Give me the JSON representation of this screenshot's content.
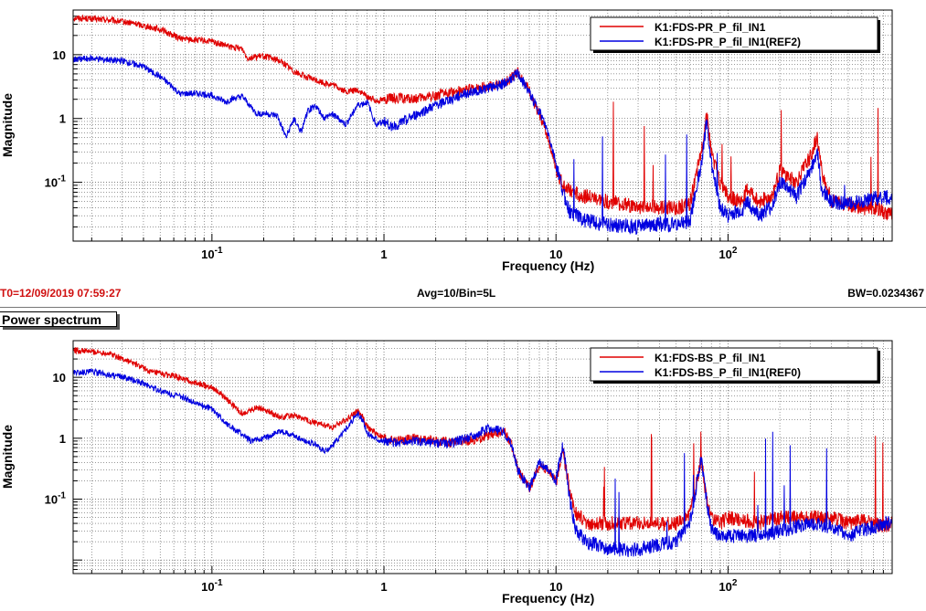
{
  "header": {
    "t0": "T0=12/09/2019 07:59:27",
    "avg": "Avg=10/Bin=5L",
    "bw": "BW=0.0234367",
    "tab_label": "Power spectrum"
  },
  "colors": {
    "trace": "#e00000",
    "reference": "#0000e0"
  },
  "chart_data": [
    {
      "type": "line",
      "xlabel": "Frequency (Hz)",
      "ylabel": "Magnitude",
      "xscale": "log",
      "yscale": "log",
      "xlim": [
        0.0156,
        900
      ],
      "ylim": [
        0.012,
        50
      ],
      "grid": true,
      "legend_position": "top-right",
      "x_ticks": [
        {
          "v": 0.1,
          "b": "10",
          "e": "-1"
        },
        {
          "v": 1,
          "b": "1",
          "e": ""
        },
        {
          "v": 10,
          "b": "10",
          "e": ""
        },
        {
          "v": 100,
          "b": "10",
          "e": "2"
        }
      ],
      "y_ticks": [
        {
          "v": 0.1,
          "b": "10",
          "e": "-1"
        },
        {
          "v": 1,
          "b": "1",
          "e": ""
        },
        {
          "v": 10,
          "b": "10",
          "e": ""
        }
      ],
      "series": [
        {
          "name": "K1:FDS-PR_P_fil_IN1",
          "color": "#e00000",
          "points": [
            [
              0.0156,
              38
            ],
            [
              0.025,
              35
            ],
            [
              0.035,
              31
            ],
            [
              0.05,
              25
            ],
            [
              0.065,
              18
            ],
            [
              0.08,
              17
            ],
            [
              0.1,
              16
            ],
            [
              0.13,
              13
            ],
            [
              0.15,
              12.5
            ],
            [
              0.16,
              9
            ],
            [
              0.2,
              9.5
            ],
            [
              0.25,
              8
            ],
            [
              0.3,
              5.5
            ],
            [
              0.35,
              4.5
            ],
            [
              0.4,
              4
            ],
            [
              0.45,
              3.6
            ],
            [
              0.5,
              3.4
            ],
            [
              0.55,
              3
            ],
            [
              0.6,
              2.6
            ],
            [
              0.7,
              2.8
            ],
            [
              0.8,
              2.2
            ],
            [
              0.9,
              1.9
            ],
            [
              1.0,
              2.0
            ],
            [
              1.2,
              2.1
            ],
            [
              1.5,
              2.0
            ],
            [
              2,
              2.3
            ],
            [
              2.5,
              2.6
            ],
            [
              3,
              2.8
            ],
            [
              3.5,
              3.0
            ],
            [
              4,
              3.2
            ],
            [
              5,
              3.5
            ],
            [
              6,
              5.5
            ],
            [
              6.5,
              3.8
            ],
            [
              7,
              2.8
            ],
            [
              7.5,
              1.6
            ],
            [
              8,
              1.2
            ],
            [
              9,
              0.5
            ],
            [
              10,
              0.16
            ],
            [
              11,
              0.09
            ],
            [
              12,
              0.07
            ],
            [
              15,
              0.06
            ],
            [
              20,
              0.05
            ],
            [
              30,
              0.042
            ],
            [
              40,
              0.04
            ],
            [
              50,
              0.04
            ],
            [
              60,
              0.045
            ],
            [
              70,
              0.3
            ],
            [
              75,
              1.2
            ],
            [
              80,
              0.3
            ],
            [
              90,
              0.1
            ],
            [
              100,
              0.06
            ],
            [
              120,
              0.05
            ],
            [
              130,
              0.08
            ],
            [
              150,
              0.05
            ],
            [
              180,
              0.06
            ],
            [
              200,
              0.15
            ],
            [
              250,
              0.1
            ],
            [
              300,
              0.25
            ],
            [
              330,
              0.5
            ],
            [
              350,
              0.15
            ],
            [
              400,
              0.05
            ],
            [
              500,
              0.045
            ],
            [
              600,
              0.04
            ],
            [
              700,
              0.04
            ],
            [
              800,
              0.035
            ],
            [
              900,
              0.03
            ]
          ]
        },
        {
          "name": "K1:FDS-PR_P_fil_IN1(REF2)",
          "color": "#0000e0",
          "points": [
            [
              0.0156,
              8.5
            ],
            [
              0.02,
              8.7
            ],
            [
              0.03,
              8
            ],
            [
              0.04,
              6.5
            ],
            [
              0.05,
              4.5
            ],
            [
              0.06,
              3.0
            ],
            [
              0.065,
              2.4
            ],
            [
              0.08,
              2.5
            ],
            [
              0.1,
              2.3
            ],
            [
              0.12,
              1.8
            ],
            [
              0.13,
              2.0
            ],
            [
              0.15,
              2.2
            ],
            [
              0.17,
              1.5
            ],
            [
              0.18,
              1.2
            ],
            [
              0.2,
              1.2
            ],
            [
              0.24,
              1.1
            ],
            [
              0.27,
              0.5
            ],
            [
              0.3,
              1.0
            ],
            [
              0.33,
              0.6
            ],
            [
              0.36,
              1.3
            ],
            [
              0.4,
              1.6
            ],
            [
              0.45,
              1.0
            ],
            [
              0.5,
              1.2
            ],
            [
              0.6,
              0.8
            ],
            [
              0.7,
              1.6
            ],
            [
              0.8,
              1.8
            ],
            [
              0.9,
              0.8
            ],
            [
              1.0,
              0.9
            ],
            [
              1.1,
              0.75
            ],
            [
              1.2,
              0.8
            ],
            [
              1.5,
              1.1
            ],
            [
              2,
              1.6
            ],
            [
              3,
              2.5
            ],
            [
              4,
              3.0
            ],
            [
              5,
              3.5
            ],
            [
              6,
              5.0
            ],
            [
              6.5,
              3.6
            ],
            [
              7,
              2.5
            ],
            [
              8,
              1.3
            ],
            [
              9,
              0.6
            ],
            [
              10,
              0.2
            ],
            [
              11,
              0.07
            ],
            [
              12,
              0.035
            ],
            [
              15,
              0.025
            ],
            [
              20,
              0.022
            ],
            [
              30,
              0.02
            ],
            [
              40,
              0.022
            ],
            [
              50,
              0.022
            ],
            [
              60,
              0.025
            ],
            [
              70,
              0.2
            ],
            [
              75,
              0.9
            ],
            [
              80,
              0.2
            ],
            [
              90,
              0.04
            ],
            [
              100,
              0.03
            ],
            [
              120,
              0.035
            ],
            [
              130,
              0.05
            ],
            [
              150,
              0.03
            ],
            [
              180,
              0.04
            ],
            [
              200,
              0.1
            ],
            [
              250,
              0.06
            ],
            [
              300,
              0.15
            ],
            [
              330,
              0.3
            ],
            [
              350,
              0.08
            ],
            [
              400,
              0.05
            ],
            [
              500,
              0.045
            ],
            [
              600,
              0.05
            ],
            [
              700,
              0.055
            ],
            [
              800,
              0.06
            ],
            [
              900,
              0.055
            ]
          ]
        }
      ]
    },
    {
      "type": "line",
      "xlabel": "Frequency (Hz)",
      "ylabel": "Magnitude",
      "xscale": "log",
      "yscale": "log",
      "xlim": [
        0.0156,
        900
      ],
      "ylim": [
        0.006,
        40
      ],
      "grid": true,
      "legend_position": "top-right",
      "x_ticks": [
        {
          "v": 0.1,
          "b": "10",
          "e": "-1"
        },
        {
          "v": 1,
          "b": "1",
          "e": ""
        },
        {
          "v": 10,
          "b": "10",
          "e": ""
        },
        {
          "v": 100,
          "b": "10",
          "e": "2"
        }
      ],
      "y_ticks": [
        {
          "v": 0.1,
          "b": "10",
          "e": "-1"
        },
        {
          "v": 1,
          "b": "1",
          "e": ""
        },
        {
          "v": 10,
          "b": "10",
          "e": ""
        }
      ],
      "series": [
        {
          "name": "K1:FDS-BS_P_fil_IN1",
          "color": "#e00000",
          "points": [
            [
              0.0156,
              28
            ],
            [
              0.025,
              25
            ],
            [
              0.035,
              17
            ],
            [
              0.045,
              12
            ],
            [
              0.06,
              10.5
            ],
            [
              0.08,
              8
            ],
            [
              0.1,
              7
            ],
            [
              0.12,
              4.5
            ],
            [
              0.14,
              3
            ],
            [
              0.15,
              2.5
            ],
            [
              0.18,
              3.2
            ],
            [
              0.2,
              3.0
            ],
            [
              0.25,
              2.2
            ],
            [
              0.3,
              2.4
            ],
            [
              0.35,
              2.0
            ],
            [
              0.4,
              1.8
            ],
            [
              0.5,
              1.5
            ],
            [
              0.6,
              2.0
            ],
            [
              0.7,
              2.8
            ],
            [
              0.75,
              2.3
            ],
            [
              0.8,
              1.5
            ],
            [
              0.9,
              1.2
            ],
            [
              1.0,
              1.0
            ],
            [
              1.2,
              0.9
            ],
            [
              1.5,
              1.0
            ],
            [
              2,
              0.9
            ],
            [
              2.5,
              0.85
            ],
            [
              3,
              0.9
            ],
            [
              3.5,
              0.95
            ],
            [
              4,
              1.1
            ],
            [
              5,
              1.3
            ],
            [
              5.5,
              0.8
            ],
            [
              6,
              0.3
            ],
            [
              7,
              0.15
            ],
            [
              8,
              0.35
            ],
            [
              9,
              0.3
            ],
            [
              10,
              0.2
            ],
            [
              11,
              0.6
            ],
            [
              12,
              0.15
            ],
            [
              13,
              0.06
            ],
            [
              15,
              0.04
            ],
            [
              20,
              0.04
            ],
            [
              30,
              0.04
            ],
            [
              40,
              0.04
            ],
            [
              50,
              0.04
            ],
            [
              60,
              0.06
            ],
            [
              70,
              0.45
            ],
            [
              75,
              0.1
            ],
            [
              80,
              0.05
            ],
            [
              90,
              0.04
            ],
            [
              100,
              0.05
            ],
            [
              150,
              0.04
            ],
            [
              200,
              0.05
            ],
            [
              300,
              0.05
            ],
            [
              400,
              0.05
            ],
            [
              500,
              0.04
            ],
            [
              600,
              0.045
            ],
            [
              700,
              0.04
            ],
            [
              800,
              0.035
            ],
            [
              900,
              0.04
            ]
          ]
        },
        {
          "name": "K1:FDS-BS_P_fil_IN1(REF0)",
          "color": "#0000e0",
          "points": [
            [
              0.0156,
              12
            ],
            [
              0.02,
              12.5
            ],
            [
              0.03,
              10
            ],
            [
              0.04,
              8
            ],
            [
              0.05,
              6
            ],
            [
              0.07,
              4.5
            ],
            [
              0.1,
              3.0
            ],
            [
              0.12,
              1.8
            ],
            [
              0.14,
              1.3
            ],
            [
              0.17,
              0.9
            ],
            [
              0.2,
              1.0
            ],
            [
              0.25,
              1.3
            ],
            [
              0.3,
              1.1
            ],
            [
              0.35,
              0.9
            ],
            [
              0.4,
              0.8
            ],
            [
              0.45,
              0.6
            ],
            [
              0.5,
              0.75
            ],
            [
              0.6,
              1.4
            ],
            [
              0.7,
              2.5
            ],
            [
              0.75,
              2.0
            ],
            [
              0.8,
              1.2
            ],
            [
              0.9,
              1.0
            ],
            [
              1.0,
              0.9
            ],
            [
              1.2,
              0.85
            ],
            [
              1.5,
              0.9
            ],
            [
              2,
              0.8
            ],
            [
              2.5,
              0.85
            ],
            [
              3,
              1.0
            ],
            [
              3.5,
              1.2
            ],
            [
              4,
              1.4
            ],
            [
              5,
              1.3
            ],
            [
              5.5,
              0.8
            ],
            [
              6,
              0.3
            ],
            [
              7,
              0.15
            ],
            [
              8,
              0.4
            ],
            [
              9,
              0.3
            ],
            [
              10,
              0.2
            ],
            [
              11,
              0.8
            ],
            [
              12,
              0.1
            ],
            [
              13,
              0.03
            ],
            [
              15,
              0.02
            ],
            [
              20,
              0.015
            ],
            [
              30,
              0.015
            ],
            [
              40,
              0.018
            ],
            [
              50,
              0.02
            ],
            [
              60,
              0.04
            ],
            [
              70,
              0.5
            ],
            [
              75,
              0.1
            ],
            [
              80,
              0.03
            ],
            [
              90,
              0.025
            ],
            [
              100,
              0.025
            ],
            [
              150,
              0.025
            ],
            [
              200,
              0.03
            ],
            [
              300,
              0.04
            ],
            [
              400,
              0.035
            ],
            [
              500,
              0.025
            ],
            [
              600,
              0.03
            ],
            [
              700,
              0.035
            ],
            [
              800,
              0.04
            ],
            [
              900,
              0.04
            ]
          ]
        }
      ]
    }
  ]
}
